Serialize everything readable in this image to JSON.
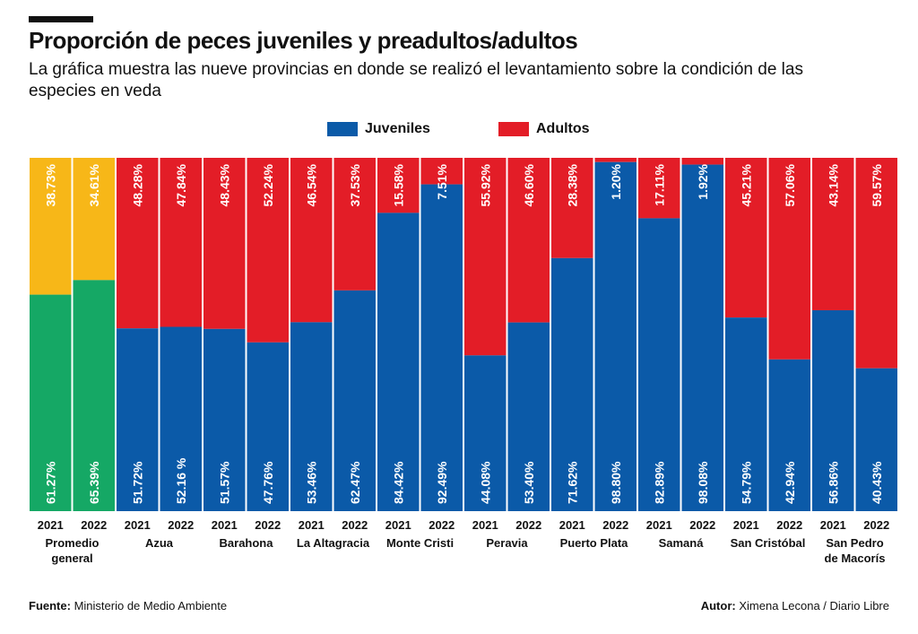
{
  "title": "Proporción de peces juveniles y preadultos/adultos",
  "subtitle": "La gráfica muestra las nueve provincias en donde se realizó el levantamiento sobre la condición de las especies en veda",
  "footer": {
    "source_label": "Fuente:",
    "source_text": "Ministerio de Medio Ambiente",
    "author_label": "Autor:",
    "author_text": "Ximena Lecona / Diario Libre"
  },
  "colors": {
    "juveniles": "#0b5aa8",
    "adultos": "#e31d27",
    "promedio_juveniles": "#15a865",
    "promedio_adultos": "#f7b718"
  },
  "chart_data": {
    "type": "bar",
    "stacked": true,
    "percent_stacked": true,
    "ylim": [
      0,
      100
    ],
    "legend_position": "top-center",
    "series": [
      {
        "name": "Juveniles",
        "color": "#0b5aa8"
      },
      {
        "name": "Adultos",
        "color": "#e31d27"
      }
    ],
    "groups": [
      {
        "label": "Promedio general",
        "average": true,
        "bars": [
          {
            "year": "2021",
            "juveniles": 61.27,
            "adultos": 38.73,
            "juveniles_label": "61.27%",
            "adultos_label": "38.73%"
          },
          {
            "year": "2022",
            "juveniles": 65.39,
            "adultos": 34.61,
            "juveniles_label": "65.39%",
            "adultos_label": "34.61%"
          }
        ]
      },
      {
        "label": "Azua",
        "bars": [
          {
            "year": "2021",
            "juveniles": 51.72,
            "adultos": 48.28,
            "juveniles_label": "51.72%",
            "adultos_label": "48.28%"
          },
          {
            "year": "2022",
            "juveniles": 52.16,
            "adultos": 47.84,
            "juveniles_label": "52.16 %",
            "adultos_label": "47.84%"
          }
        ]
      },
      {
        "label": "Barahona",
        "bars": [
          {
            "year": "2021",
            "juveniles": 51.57,
            "adultos": 48.43,
            "juveniles_label": "51.57%",
            "adultos_label": "48.43%"
          },
          {
            "year": "2022",
            "juveniles": 47.76,
            "adultos": 52.24,
            "juveniles_label": "47.76%",
            "adultos_label": "52.24%"
          }
        ]
      },
      {
        "label": "La Altagracia",
        "bars": [
          {
            "year": "2021",
            "juveniles": 53.46,
            "adultos": 46.54,
            "juveniles_label": "53.46%",
            "adultos_label": "46.54%"
          },
          {
            "year": "2022",
            "juveniles": 62.47,
            "adultos": 37.53,
            "juveniles_label": "62.47%",
            "adultos_label": "37.53%"
          }
        ]
      },
      {
        "label": "Monte Cristi",
        "bars": [
          {
            "year": "2021",
            "juveniles": 84.42,
            "adultos": 15.58,
            "juveniles_label": "84.42%",
            "adultos_label": "15.58%"
          },
          {
            "year": "2022",
            "juveniles": 92.49,
            "adultos": 7.51,
            "juveniles_label": "92.49%",
            "adultos_label": "7.51%"
          }
        ]
      },
      {
        "label": "Peravia",
        "bars": [
          {
            "year": "2021",
            "juveniles": 44.08,
            "adultos": 55.92,
            "juveniles_label": "44.08%",
            "adultos_label": "55.92%"
          },
          {
            "year": "2022",
            "juveniles": 53.4,
            "adultos": 46.6,
            "juveniles_label": "53.40%",
            "adultos_label": "46.60%"
          }
        ]
      },
      {
        "label": "Puerto Plata",
        "bars": [
          {
            "year": "2021",
            "juveniles": 71.62,
            "adultos": 28.38,
            "juveniles_label": "71.62%",
            "adultos_label": "28.38%"
          },
          {
            "year": "2022",
            "juveniles": 98.8,
            "adultos": 1.2,
            "juveniles_label": "98.80%",
            "adultos_label": "1.20%"
          }
        ]
      },
      {
        "label": "Samaná",
        "bars": [
          {
            "year": "2021",
            "juveniles": 82.89,
            "adultos": 17.11,
            "juveniles_label": "82.89%",
            "adultos_label": "17.11%"
          },
          {
            "year": "2022",
            "juveniles": 98.08,
            "adultos": 1.92,
            "juveniles_label": "98.08%",
            "adultos_label": "1.92%"
          }
        ]
      },
      {
        "label": "San Cristóbal",
        "bars": [
          {
            "year": "2021",
            "juveniles": 54.79,
            "adultos": 45.21,
            "juveniles_label": "54.79%",
            "adultos_label": "45.21%"
          },
          {
            "year": "2022",
            "juveniles": 42.94,
            "adultos": 57.06,
            "juveniles_label": "42.94%",
            "adultos_label": "57.06%"
          }
        ]
      },
      {
        "label": "San Pedro de Macorís",
        "label_lines": [
          "San Pedro",
          "de Macorís"
        ],
        "bars": [
          {
            "year": "2021",
            "juveniles": 56.86,
            "adultos": 43.14,
            "juveniles_label": "56.86%",
            "adultos_label": "43.14%"
          },
          {
            "year": "2022",
            "juveniles": 40.43,
            "adultos": 59.57,
            "juveniles_label": "40.43%",
            "adultos_label": "59.57%"
          }
        ]
      }
    ]
  }
}
